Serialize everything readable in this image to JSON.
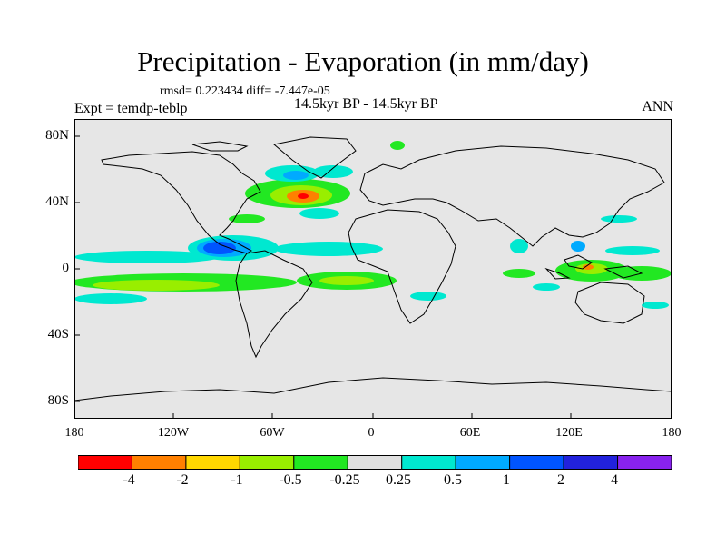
{
  "title": "Precipitation - Evaporation (in mm/day)",
  "stats": "rmsd= 0.223434 diff= -7.447e-05",
  "experiment": "Expt = temdp-teblp",
  "subtitle": "14.5kyr BP - 14.5kyr BP",
  "season": "ANN",
  "lat_labels": [
    "80N",
    "40N",
    "0",
    "40S",
    "80S"
  ],
  "lon_labels": [
    "180",
    "120W",
    "60W",
    "0",
    "60E",
    "120E",
    "180"
  ],
  "colorbar": {
    "colors": [
      "#ff0000",
      "#ff8000",
      "#ffd700",
      "#99ee00",
      "#22e822",
      "#e0e0e0",
      "#00e8d0",
      "#00aaff",
      "#0055ff",
      "#2222dd",
      "#8822ee"
    ],
    "labels": [
      "-4",
      "-2",
      "-1",
      "-0.5",
      "-0.25",
      "0.25",
      "0.5",
      "1",
      "2",
      "4"
    ]
  },
  "land_color": "#e6e6e6"
}
